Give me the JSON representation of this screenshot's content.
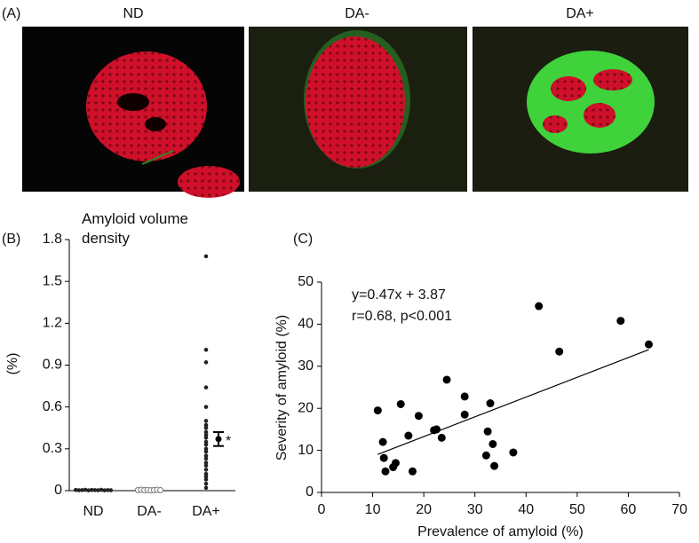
{
  "panel_labels": [
    "(A)",
    "(B)",
    "(C)"
  ],
  "images": [
    {
      "label": "ND"
    },
    {
      "label": "DA-"
    },
    {
      "label": "DA+"
    }
  ],
  "chart_data": [
    {
      "type": "strip",
      "title": "Amyloid volume density",
      "y_label": "(%)",
      "categories": [
        "ND",
        "DA-",
        "DA+"
      ],
      "values": [
        [
          0.005,
          0.003,
          0.004,
          0.006,
          0.002,
          0.005,
          0.004,
          0.003,
          0.006,
          0.002,
          0.004,
          0.003
        ],
        [
          0.004,
          0.006,
          0.003,
          0.005,
          0.002,
          0.004,
          0.006,
          0.003
        ],
        [
          1.68,
          1.01,
          0.92,
          0.74,
          0.6,
          0.5,
          0.47,
          0.45,
          0.42,
          0.4,
          0.38,
          0.35,
          0.33,
          0.3,
          0.28,
          0.25,
          0.23,
          0.2,
          0.18,
          0.15,
          0.12,
          0.1,
          0.08,
          0.05,
          0.02
        ]
      ],
      "point_colors": [
        "#222222",
        "#ffffff",
        "#222222"
      ],
      "summary": {
        "mean": 0.37,
        "error": 0.05,
        "label": "*"
      },
      "ylim": [
        0,
        1.8
      ],
      "yticks": [
        0,
        {
          "value": 0.3,
          "label": "0.3"
        },
        {
          "value": 0.6,
          "label": "0.6"
        },
        {
          "value": 0.9,
          "label": "0.9"
        },
        {
          "value": 1.2,
          "label": "1.2"
        },
        {
          "value": 1.5,
          "label": "1.5"
        },
        {
          "value": 1.8,
          "label": "1.8"
        }
      ]
    },
    {
      "type": "scatter",
      "x_label": "Prevalence of amyloid (%)",
      "y_label": "Severity of amyloid (%)",
      "annotations": [
        "y=0.47x + 3.87",
        "r=0.68, p<0.001"
      ],
      "x": [
        11,
        12,
        12.2,
        12.5,
        14,
        14.5,
        15.5,
        17,
        17.8,
        19,
        22,
        22.5,
        23.5,
        24.5,
        28,
        28,
        32.2,
        32.5,
        33,
        33.5,
        33.8,
        37.5,
        42.5,
        46.5,
        58.5,
        64
      ],
      "y": [
        19.5,
        12,
        8.2,
        5,
        6,
        7,
        21,
        13.5,
        5,
        18.2,
        14.8,
        15,
        13,
        26.8,
        22.8,
        18.5,
        8.8,
        14.5,
        21.2,
        11.5,
        6.3,
        9.5,
        44.3,
        33.5,
        40.8,
        35.2
      ],
      "color": "#000000",
      "fit": {
        "slope": 0.47,
        "intercept": 3.87,
        "x_range": [
          11,
          64
        ]
      },
      "xlim": [
        0,
        70
      ],
      "xticks": [
        0,
        10,
        20,
        30,
        40,
        50,
        60,
        70
      ],
      "ylim": [
        0,
        50
      ],
      "yticks": [
        0,
        10,
        20,
        30,
        40,
        50
      ]
    }
  ]
}
